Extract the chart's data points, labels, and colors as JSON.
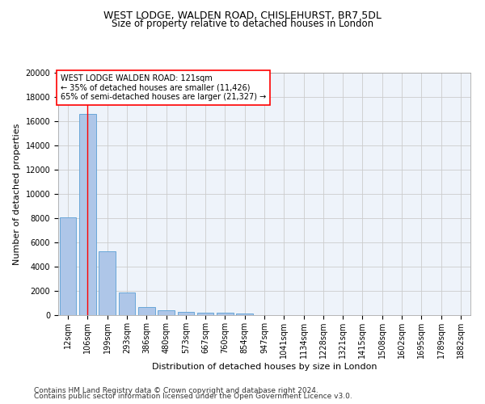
{
  "title1": "WEST LODGE, WALDEN ROAD, CHISLEHURST, BR7 5DL",
  "title2": "Size of property relative to detached houses in London",
  "xlabel": "Distribution of detached houses by size in London",
  "ylabel": "Number of detached properties",
  "footer1": "Contains HM Land Registry data © Crown copyright and database right 2024.",
  "footer2": "Contains public sector information licensed under the Open Government Licence v3.0.",
  "categories": [
    "12sqm",
    "106sqm",
    "199sqm",
    "293sqm",
    "386sqm",
    "480sqm",
    "573sqm",
    "667sqm",
    "760sqm",
    "854sqm",
    "947sqm",
    "1041sqm",
    "1134sqm",
    "1228sqm",
    "1321sqm",
    "1415sqm",
    "1508sqm",
    "1602sqm",
    "1695sqm",
    "1789sqm",
    "1882sqm"
  ],
  "values": [
    8100,
    16600,
    5300,
    1850,
    700,
    380,
    290,
    230,
    190,
    160,
    0,
    0,
    0,
    0,
    0,
    0,
    0,
    0,
    0,
    0,
    0
  ],
  "bar_color": "#aec6e8",
  "bar_edge_color": "#5a9fd4",
  "annotation_box_text": "WEST LODGE WALDEN ROAD: 121sqm\n← 35% of detached houses are smaller (11,426)\n65% of semi-detached houses are larger (21,327) →",
  "annotation_box_color": "white",
  "annotation_box_edge_color": "red",
  "vline_color": "red",
  "vline_x_index": 1,
  "ylim": [
    0,
    20000
  ],
  "yticks": [
    0,
    2000,
    4000,
    6000,
    8000,
    10000,
    12000,
    14000,
    16000,
    18000,
    20000
  ],
  "grid_color": "#cccccc",
  "bg_color": "#eef3fa",
  "title_fontsize": 9,
  "subtitle_fontsize": 8.5,
  "axis_label_fontsize": 8,
  "tick_fontsize": 7,
  "annotation_fontsize": 7,
  "footer_fontsize": 6.5
}
